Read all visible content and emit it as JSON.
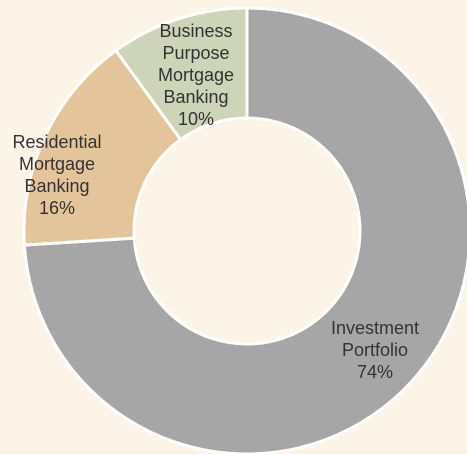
{
  "chart_data": {
    "type": "pie",
    "categories": [
      "Investment Portfolio",
      "Residential Mortgage Banking",
      "Business Purpose Mortgage Banking"
    ],
    "values": [
      74,
      16,
      10
    ],
    "value_labels": [
      "74%",
      "16%",
      "10%"
    ],
    "colors": [
      "#a6a6a6",
      "#e4c59b",
      "#cdd4b8"
    ]
  }
}
